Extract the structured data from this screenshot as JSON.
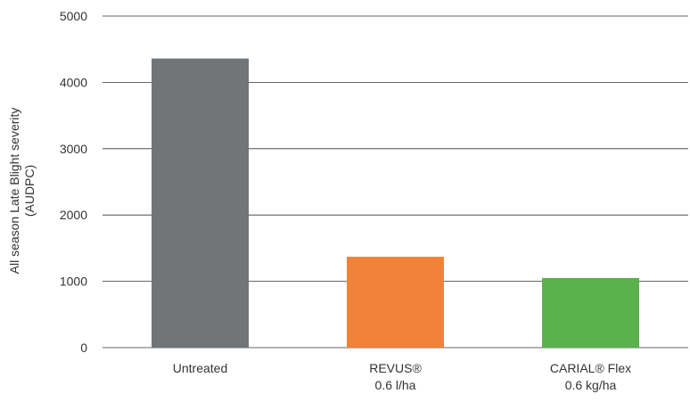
{
  "chart_data": {
    "type": "bar",
    "title": "",
    "xlabel": "",
    "ylabel_lines": [
      "All season Late Blight severity",
      "(AUDPC)"
    ],
    "ylim": [
      0,
      5000
    ],
    "yticks": [
      0,
      1000,
      2000,
      3000,
      4000,
      5000
    ],
    "grid": true,
    "categories": [
      {
        "lines": [
          "Untreated"
        ]
      },
      {
        "lines": [
          "REVUS®",
          "0.6 l/ha"
        ]
      },
      {
        "lines": [
          "CARIAL® Flex",
          "0.6 kg/ha"
        ]
      }
    ],
    "values": [
      4360,
      1370,
      1050
    ],
    "colors": [
      "#717578",
      "#f28238",
      "#5bb14b"
    ],
    "gridline_color": "#333333"
  }
}
